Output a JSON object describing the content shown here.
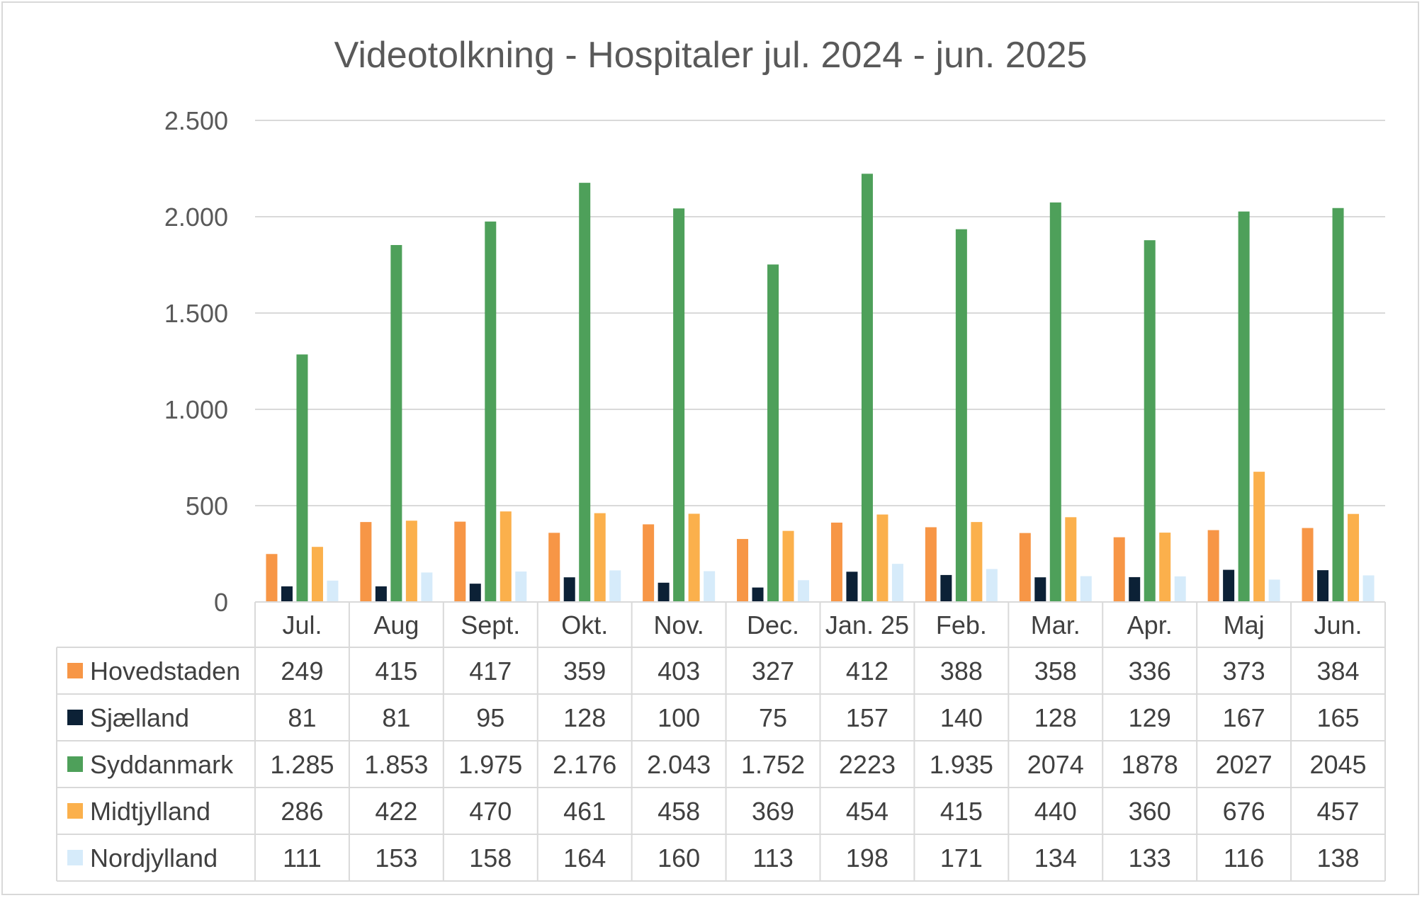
{
  "chart_data": {
    "type": "bar",
    "title": "Videotolkning - Hospitaler jul. 2024 - jun. 2025",
    "xlabel": "",
    "ylabel": "",
    "ylim": [
      0,
      2500
    ],
    "yticks": [
      0,
      500,
      1000,
      1500,
      2000,
      2500
    ],
    "ytick_labels": [
      "0",
      "500",
      "1.000",
      "1.500",
      "2.000",
      "2.500"
    ],
    "grid": true,
    "legend": "data-table",
    "categories": [
      "Jul.",
      "Aug",
      "Sept.",
      "Okt.",
      "Nov.",
      "Dec.",
      "Jan. 25",
      "Feb.",
      "Mar.",
      "Apr.",
      "Maj",
      "Jun."
    ],
    "series": [
      {
        "name": "Hovedstaden",
        "color": "#F79646",
        "values": [
          249,
          415,
          417,
          359,
          403,
          327,
          412,
          388,
          358,
          336,
          373,
          384
        ],
        "labels": [
          "249",
          "415",
          "417",
          "359",
          "403",
          "327",
          "412",
          "388",
          "358",
          "336",
          "373",
          "384"
        ]
      },
      {
        "name": "Sjælland",
        "color": "#0C2136",
        "values": [
          81,
          81,
          95,
          128,
          100,
          75,
          157,
          140,
          128,
          129,
          167,
          165
        ],
        "labels": [
          "81",
          "81",
          "95",
          "128",
          "100",
          "75",
          "157",
          "140",
          "128",
          "129",
          "167",
          "165"
        ]
      },
      {
        "name": "Syddanmark",
        "color": "#4EA05A",
        "values": [
          1285,
          1853,
          1975,
          2176,
          2043,
          1752,
          2223,
          1935,
          2074,
          1878,
          2027,
          2045
        ],
        "labels": [
          "1.285",
          "1.853",
          "1.975",
          "2.176",
          "2.043",
          "1.752",
          "2223",
          "1.935",
          "2074",
          "1878",
          "2027",
          "2045"
        ]
      },
      {
        "name": "Midtjylland",
        "color": "#FBB04C",
        "values": [
          286,
          422,
          470,
          461,
          458,
          369,
          454,
          415,
          440,
          360,
          676,
          457
        ],
        "labels": [
          "286",
          "422",
          "470",
          "461",
          "458",
          "369",
          "454",
          "415",
          "440",
          "360",
          "676",
          "457"
        ]
      },
      {
        "name": "Nordjylland",
        "color": "#D6EBFA",
        "values": [
          111,
          153,
          158,
          164,
          160,
          113,
          198,
          171,
          134,
          133,
          116,
          138
        ],
        "labels": [
          "111",
          "153",
          "158",
          "164",
          "160",
          "113",
          "198",
          "171",
          "134",
          "133",
          "116",
          "138"
        ]
      }
    ]
  }
}
